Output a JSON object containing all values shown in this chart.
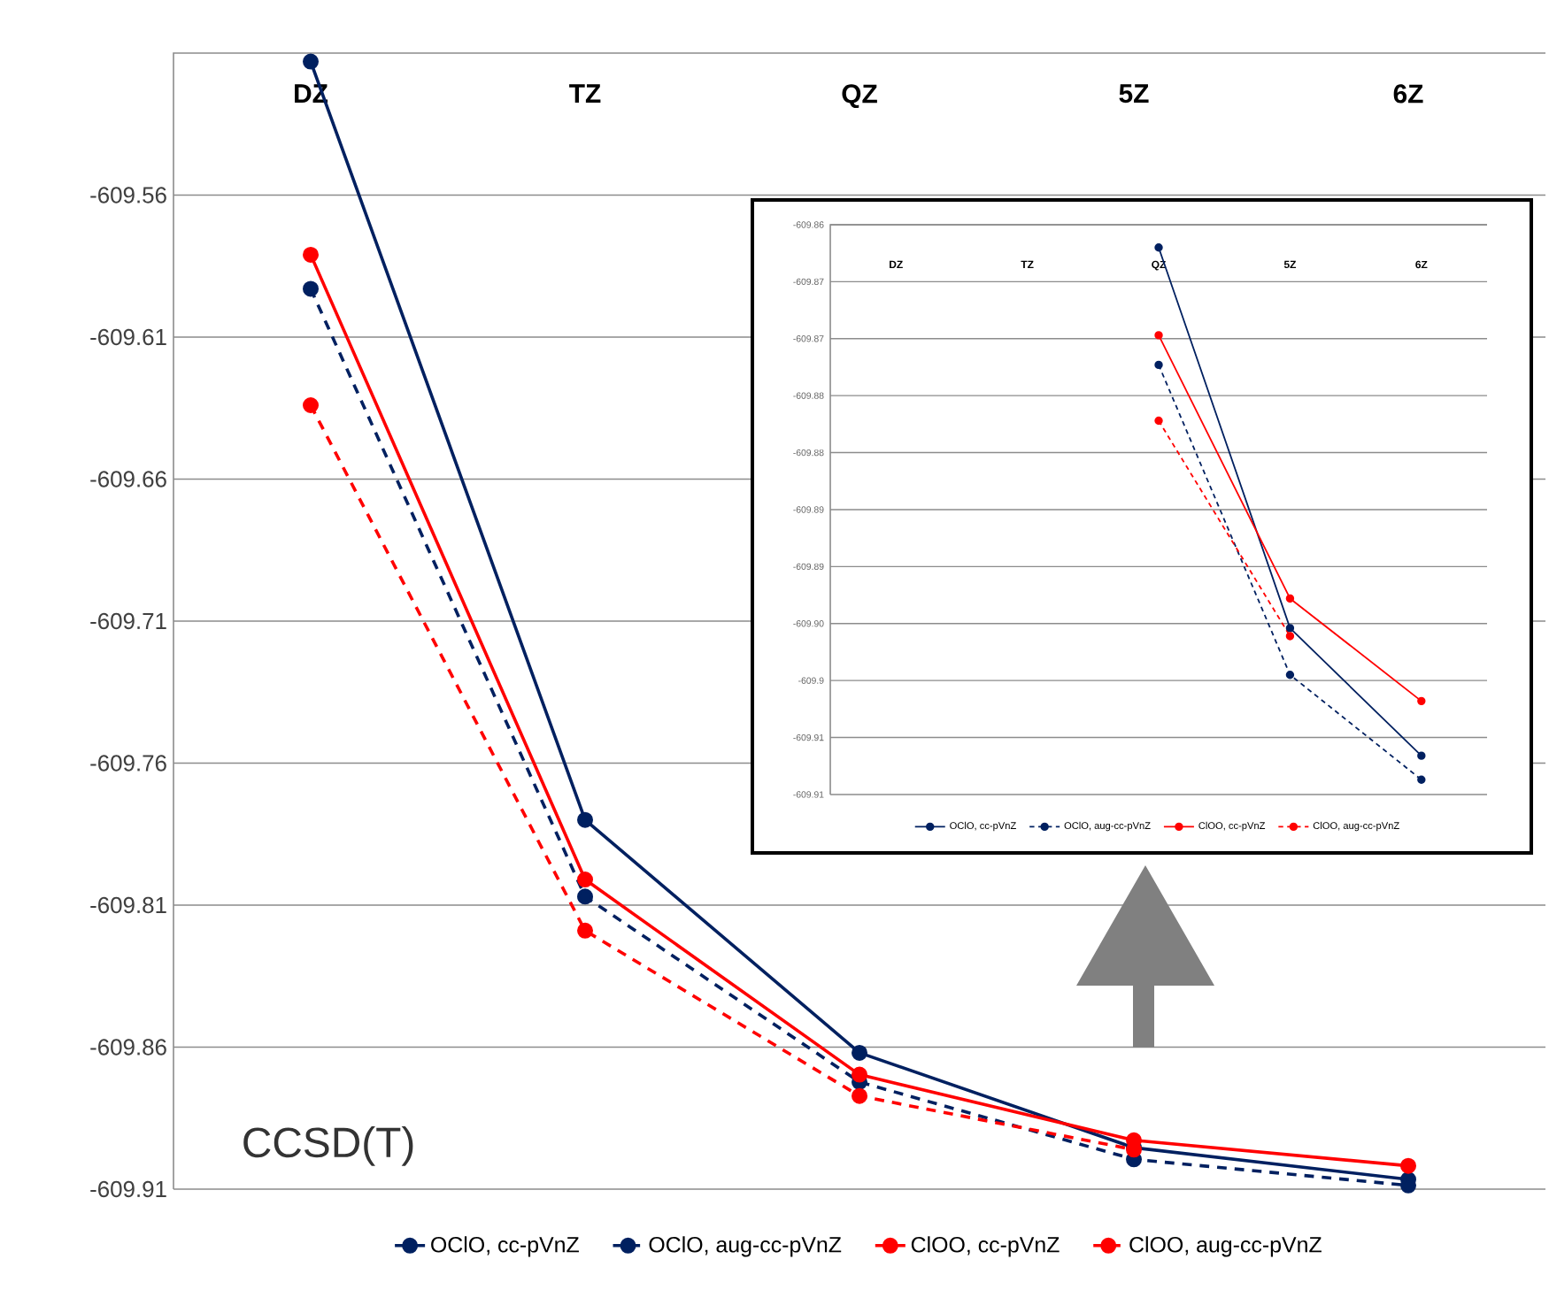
{
  "chart_data": [
    {
      "type": "line",
      "categories": [
        "DZ",
        "TZ",
        "QZ",
        "5Z",
        "6Z"
      ],
      "series": [
        {
          "name": "OClO, cc-pVnZ",
          "color": "#002060",
          "line_style": "solid",
          "values": [
            -609.513,
            -609.78,
            -609.862,
            -609.8954,
            -609.9066
          ]
        },
        {
          "name": "OClO, aug-cc-pVnZ",
          "color": "#002060",
          "line_style": "dashed",
          "values": [
            -609.593,
            -609.807,
            -609.8723,
            -609.8995,
            -609.9087
          ]
        },
        {
          "name": "ClOO, cc-pVnZ",
          "color": "#ff0000",
          "line_style": "solid",
          "values": [
            -609.581,
            -609.801,
            -609.8697,
            -609.8928,
            -609.9018
          ]
        },
        {
          "name": "ClOO, aug-cc-pVnZ",
          "color": "#ff0000",
          "line_style": "dashed",
          "values": [
            -609.634,
            -609.819,
            -609.8772,
            -609.8961,
            null
          ]
        }
      ],
      "ylim": [
        -609.91,
        -609.51
      ],
      "yticks": [
        -609.91,
        -609.86,
        -609.81,
        -609.76,
        -609.71,
        -609.66,
        -609.61,
        -609.56
      ],
      "grid": "y",
      "marker": "circle",
      "legend": "bottom",
      "annotations": [
        "CCSD(T)"
      ]
    },
    {
      "type": "line",
      "categories": [
        "DZ",
        "TZ",
        "QZ",
        "5Z",
        "6Z"
      ],
      "series": [
        {
          "name": "OClO, cc-pVnZ",
          "color": "#002060",
          "line_style": "solid",
          "values": [
            null,
            null,
            -609.862,
            -609.8954,
            -609.9066
          ]
        },
        {
          "name": "OClO, aug-cc-pVnZ",
          "color": "#002060",
          "line_style": "dashed",
          "values": [
            null,
            null,
            -609.8723,
            -609.8995,
            -609.9087
          ]
        },
        {
          "name": "ClOO, cc-pVnZ",
          "color": "#ff0000",
          "line_style": "solid",
          "values": [
            null,
            null,
            -609.8697,
            -609.8928,
            -609.9018
          ]
        },
        {
          "name": "ClOO, aug-cc-pVnZ",
          "color": "#ff0000",
          "line_style": "dashed",
          "values": [
            null,
            null,
            -609.8772,
            -609.8961,
            null
          ]
        }
      ],
      "ylim": [
        -609.91,
        -609.86
      ],
      "yticks": [
        -609.91,
        {
          "value": -609.905,
          "label": "-609.91"
        },
        -609.9,
        {
          "value": -609.895,
          "label": "-609.90"
        },
        -609.89,
        {
          "value": -609.885,
          "label": "-609.89"
        },
        -609.88,
        {
          "value": -609.875,
          "label": "-609.88"
        },
        -609.87,
        {
          "value": -609.865,
          "label": "-609.87"
        },
        -609.86
      ],
      "grid": "y",
      "marker": "circle",
      "legend": "bottom"
    }
  ]
}
